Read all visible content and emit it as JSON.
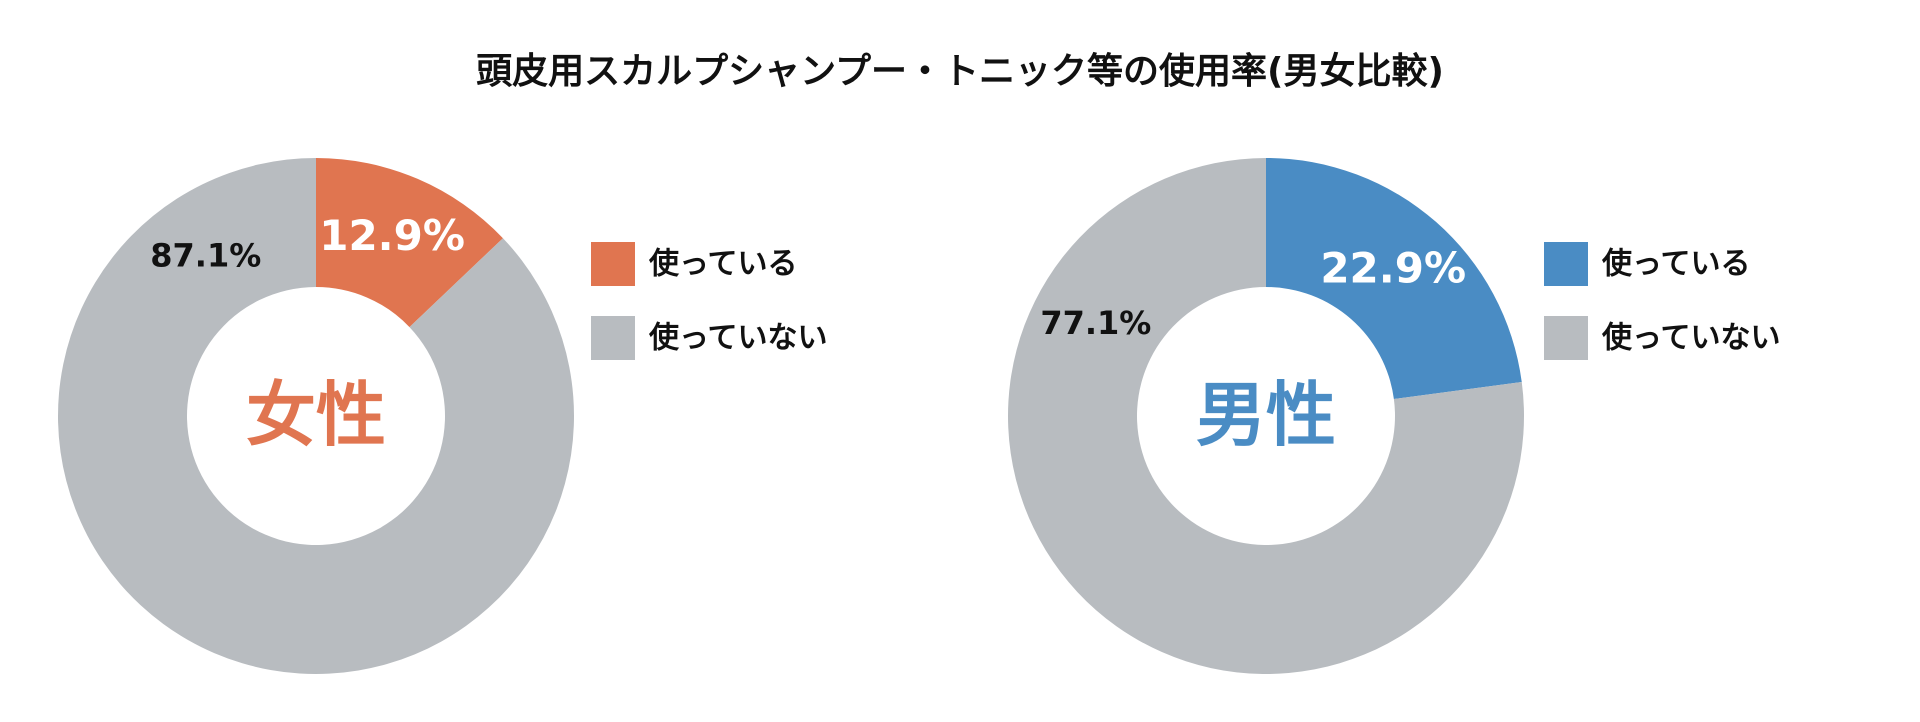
{
  "title": "頭皮用スカルプシャンプー・トニック等の使用率(男女比較)",
  "chart_data": [
    {
      "type": "donut",
      "center_label": "女性",
      "center_color": "#e07550",
      "categories": [
        "使っている",
        "使っていない"
      ],
      "values": [
        12.9,
        87.1
      ],
      "value_labels": [
        "12.9%",
        "87.1%"
      ],
      "colors": [
        "#e07550",
        "#b8bcc0"
      ]
    },
    {
      "type": "donut",
      "center_label": "男性",
      "center_color": "#4a8cc4",
      "categories": [
        "使っている",
        "使っていない"
      ],
      "values": [
        22.9,
        77.1
      ],
      "value_labels": [
        "22.9%",
        "77.1%"
      ],
      "colors": [
        "#4a8cc4",
        "#b8bcc0"
      ]
    }
  ]
}
